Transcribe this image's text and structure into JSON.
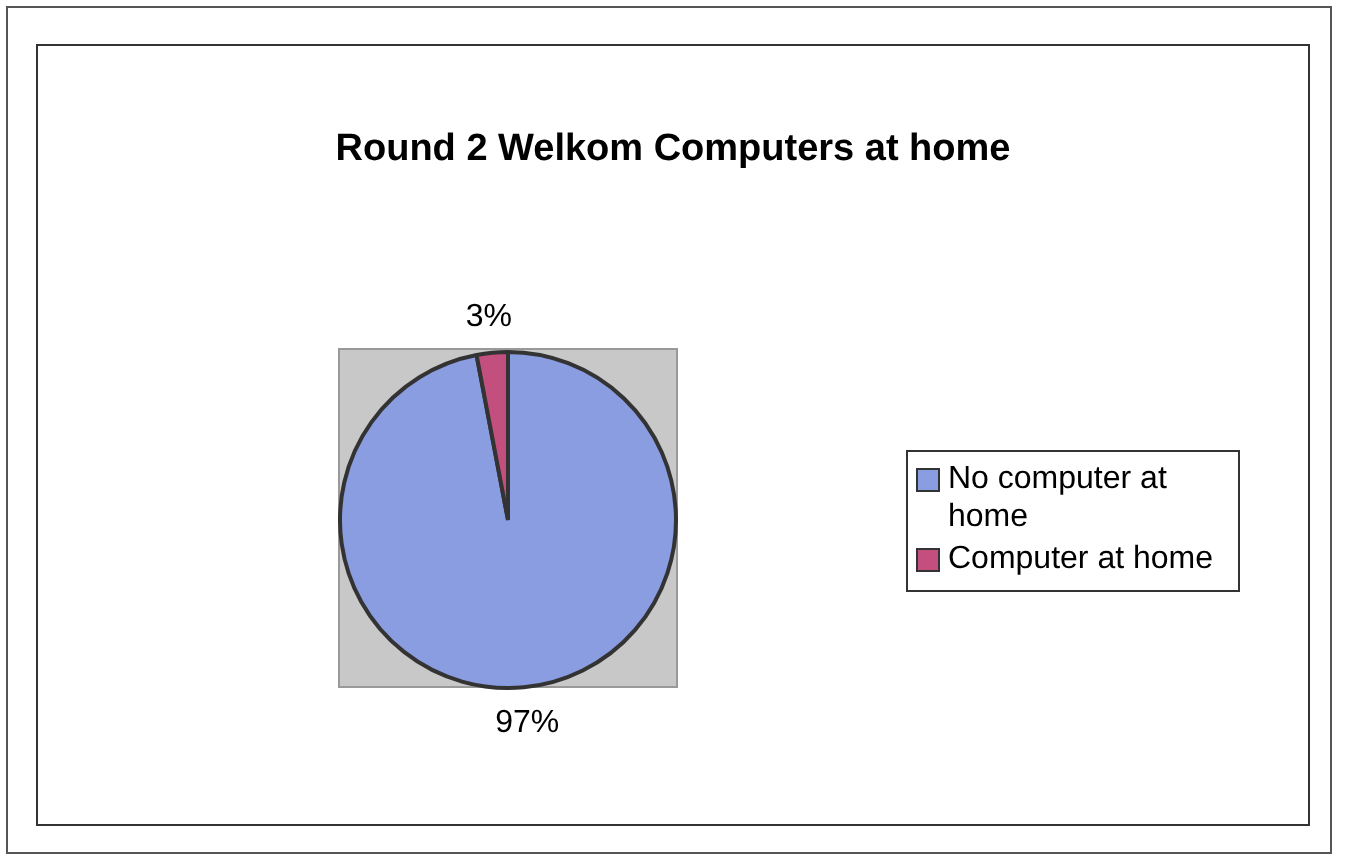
{
  "chart_data": {
    "type": "pie",
    "title": "Round 2 Welkom Computers at home",
    "categories": [
      "No computer at home",
      "Computer at home"
    ],
    "values": [
      97,
      3
    ],
    "colors": [
      "#8a9de0",
      "#c24f7e"
    ],
    "value_labels": [
      "97%",
      "3%"
    ],
    "legend": "right"
  }
}
